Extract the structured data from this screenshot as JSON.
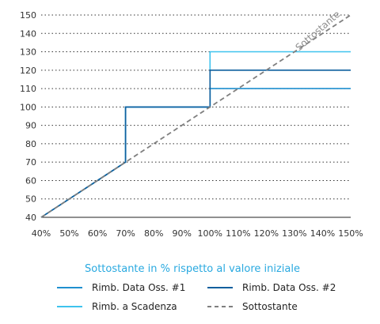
{
  "chart_data": {
    "type": "line",
    "title": "",
    "xlabel": "Sottostante in % rispetto al valore iniziale",
    "ylabel": "",
    "xlim": [
      40,
      150
    ],
    "ylim": [
      40,
      150
    ],
    "x_ticks": [
      40,
      50,
      60,
      70,
      80,
      90,
      100,
      110,
      120,
      130,
      140,
      150
    ],
    "x_tick_labels": [
      "40%",
      "50%",
      "60%",
      "70%",
      "80%",
      "90%",
      "100%",
      "110%",
      "120%",
      "130%",
      "140%",
      "150%"
    ],
    "y_ticks": [
      40,
      50,
      60,
      70,
      80,
      90,
      100,
      110,
      120,
      130,
      140,
      150
    ],
    "y_tick_labels": [
      "40",
      "50",
      "60",
      "70",
      "80",
      "90",
      "100",
      "110",
      "120",
      "130",
      "140",
      "150"
    ],
    "grid": "horizontal dotted",
    "annotation": "Sottostante",
    "legend_position": "bottom",
    "series": [
      {
        "name": "Rimb. Data Oss. #1",
        "color": "#1f8fcf",
        "dash": "solid",
        "points": [
          [
            40,
            40
          ],
          [
            70,
            70
          ],
          [
            70,
            100
          ],
          [
            100,
            100
          ],
          [
            100,
            110
          ],
          [
            150,
            110
          ]
        ]
      },
      {
        "name": "Rimb. Data Oss. #2",
        "color": "#0d5f9e",
        "dash": "solid",
        "points": [
          [
            40,
            40
          ],
          [
            70,
            70
          ],
          [
            70,
            100
          ],
          [
            100,
            100
          ],
          [
            100,
            120
          ],
          [
            150,
            120
          ]
        ]
      },
      {
        "name": "Rimb. a Scadenza",
        "color": "#3ec3ee",
        "dash": "solid",
        "points": [
          [
            40,
            40
          ],
          [
            70,
            70
          ],
          [
            70,
            100
          ],
          [
            100,
            100
          ],
          [
            100,
            130
          ],
          [
            150,
            130
          ]
        ]
      },
      {
        "name": "Sottostante",
        "color": "#7f7f7f",
        "dash": "dashed",
        "points": [
          [
            40,
            40
          ],
          [
            150,
            150
          ]
        ]
      }
    ]
  }
}
